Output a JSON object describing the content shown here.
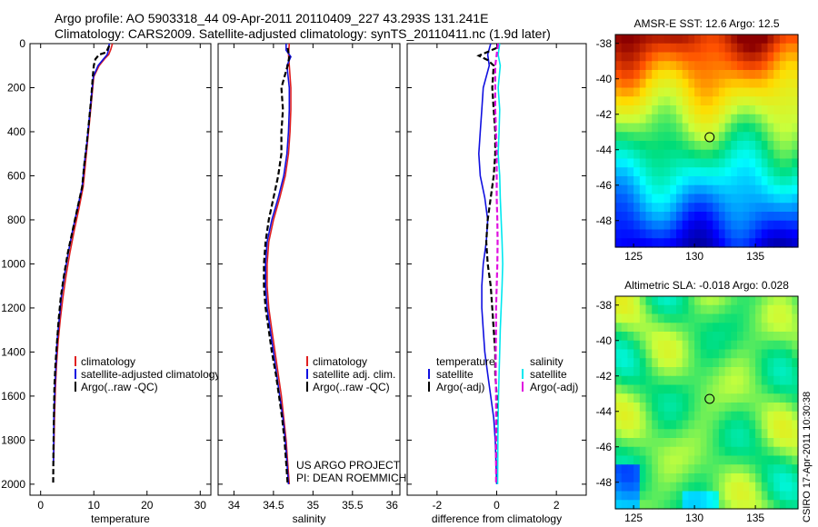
{
  "header": {
    "line1": "Argo profile: AO 5903318_44 09-Apr-2011 20110409_227 43.293S 131.241E",
    "line2": "Climatology: CARS2009. Satellite-adjusted climatology: synTS_20110411.nc (1.9d later)"
  },
  "colors": {
    "climatology": "#e02020",
    "satellite": "#1010e0",
    "argo": "#000000",
    "salinity_sat": "#00e8f0",
    "salinity_argo": "#e010e0"
  },
  "chart_data": [
    {
      "type": "line",
      "id": "temperature",
      "xlabel": "temperature",
      "ylabel": "",
      "xlim": [
        -2,
        32
      ],
      "ylim": [
        2050,
        0
      ],
      "xticks": [
        0,
        10,
        20,
        30
      ],
      "yticks": [
        0,
        200,
        400,
        600,
        800,
        1000,
        1200,
        1400,
        1600,
        1800,
        2000
      ],
      "series": [
        {
          "name": "climatology",
          "color": "#e02020",
          "style": "solid",
          "points": [
            [
              13.5,
              0
            ],
            [
              13.2,
              25
            ],
            [
              12.8,
              50
            ],
            [
              12,
              70
            ],
            [
              11,
              100
            ],
            [
              10,
              150
            ],
            [
              9.6,
              250
            ],
            [
              9.2,
              350
            ],
            [
              8.8,
              450
            ],
            [
              8.4,
              550
            ],
            [
              8,
              650
            ],
            [
              7.2,
              750
            ],
            [
              6.3,
              850
            ],
            [
              5.5,
              950
            ],
            [
              4.8,
              1050
            ],
            [
              4.2,
              1150
            ],
            [
              3.7,
              1250
            ],
            [
              3.3,
              1350
            ],
            [
              3.0,
              1450
            ],
            [
              2.8,
              1550
            ],
            [
              2.6,
              1700
            ],
            [
              2.5,
              1850
            ],
            [
              2.4,
              1900
            ]
          ]
        },
        {
          "name": "satellite-adjusted climatology",
          "color": "#1010e0",
          "style": "solid",
          "points": [
            [
              12.9,
              0
            ],
            [
              12.8,
              25
            ],
            [
              12.5,
              50
            ],
            [
              11.8,
              70
            ],
            [
              10.8,
              100
            ],
            [
              9.9,
              150
            ],
            [
              9.5,
              250
            ],
            [
              9.1,
              350
            ],
            [
              8.7,
              450
            ],
            [
              8.2,
              550
            ],
            [
              7.8,
              650
            ],
            [
              6.9,
              750
            ],
            [
              6,
              850
            ],
            [
              5.2,
              950
            ],
            [
              4.5,
              1050
            ],
            [
              3.9,
              1150
            ],
            [
              3.5,
              1250
            ],
            [
              3.1,
              1350
            ],
            [
              2.9,
              1450
            ],
            [
              2.7,
              1550
            ],
            [
              2.5,
              1700
            ],
            [
              2.45,
              1850
            ],
            [
              2.4,
              1900
            ]
          ]
        },
        {
          "name": "Argo(..raw -QC)",
          "color": "#000000",
          "style": "dashed",
          "points": [
            [
              12.9,
              10
            ],
            [
              12.3,
              40
            ],
            [
              11,
              50
            ],
            [
              10.3,
              70
            ],
            [
              10,
              100
            ],
            [
              9.8,
              150
            ],
            [
              9.5,
              250
            ],
            [
              9.1,
              350
            ],
            [
              8.7,
              450
            ],
            [
              8.2,
              550
            ],
            [
              7.8,
              650
            ],
            [
              6.9,
              750
            ],
            [
              6,
              850
            ],
            [
              5.1,
              950
            ],
            [
              4.4,
              1050
            ],
            [
              3.8,
              1150
            ],
            [
              3.4,
              1250
            ],
            [
              3.1,
              1350
            ],
            [
              2.8,
              1450
            ],
            [
              2.6,
              1550
            ],
            [
              2.5,
              1700
            ],
            [
              2.4,
              1850
            ],
            [
              2.35,
              2000
            ]
          ]
        }
      ],
      "legend": [
        "climatology",
        "satellite-adjusted climatology",
        "Argo(..raw -QC)"
      ]
    },
    {
      "type": "line",
      "id": "salinity",
      "xlabel": "salinity",
      "ylabel": "",
      "xlim": [
        33.8,
        36.1
      ],
      "ylim": [
        2050,
        0
      ],
      "xticks": [
        34,
        34.5,
        35,
        35.5,
        36
      ],
      "series": [
        {
          "name": "climatology",
          "color": "#e02020",
          "style": "solid",
          "points": [
            [
              34.7,
              0
            ],
            [
              34.69,
              50
            ],
            [
              34.7,
              100
            ],
            [
              34.72,
              200
            ],
            [
              34.72,
              300
            ],
            [
              34.71,
              400
            ],
            [
              34.69,
              500
            ],
            [
              34.65,
              600
            ],
            [
              34.58,
              700
            ],
            [
              34.5,
              800
            ],
            [
              34.44,
              900
            ],
            [
              34.42,
              1000
            ],
            [
              34.42,
              1100
            ],
            [
              34.44,
              1200
            ],
            [
              34.48,
              1300
            ],
            [
              34.52,
              1400
            ],
            [
              34.56,
              1500
            ],
            [
              34.6,
              1600
            ],
            [
              34.63,
              1700
            ],
            [
              34.66,
              1800
            ],
            [
              34.68,
              1900
            ],
            [
              34.7,
              2000
            ]
          ]
        },
        {
          "name": "satellite adj. clim.",
          "color": "#1010e0",
          "style": "solid",
          "points": [
            [
              34.66,
              0
            ],
            [
              34.66,
              30
            ],
            [
              34.72,
              60
            ],
            [
              34.67,
              100
            ],
            [
              34.7,
              200
            ],
            [
              34.7,
              300
            ],
            [
              34.69,
              400
            ],
            [
              34.67,
              500
            ],
            [
              34.63,
              600
            ],
            [
              34.56,
              700
            ],
            [
              34.48,
              800
            ],
            [
              34.42,
              900
            ],
            [
              34.4,
              1000
            ],
            [
              34.4,
              1100
            ],
            [
              34.42,
              1200
            ],
            [
              34.46,
              1300
            ],
            [
              34.5,
              1400
            ],
            [
              34.54,
              1500
            ],
            [
              34.58,
              1600
            ],
            [
              34.62,
              1700
            ],
            [
              34.65,
              1800
            ],
            [
              34.67,
              1900
            ],
            [
              34.69,
              2000
            ]
          ]
        },
        {
          "name": "Argo(..raw -QC)",
          "color": "#000000",
          "style": "dashed",
          "points": [
            [
              34.68,
              20
            ],
            [
              34.7,
              60
            ],
            [
              34.68,
              100
            ],
            [
              34.6,
              200
            ],
            [
              34.62,
              300
            ],
            [
              34.6,
              400
            ],
            [
              34.6,
              500
            ],
            [
              34.56,
              600
            ],
            [
              34.5,
              700
            ],
            [
              34.44,
              800
            ],
            [
              34.4,
              900
            ],
            [
              34.38,
              1000
            ],
            [
              34.38,
              1100
            ],
            [
              34.4,
              1200
            ],
            [
              34.44,
              1300
            ],
            [
              34.48,
              1400
            ],
            [
              34.53,
              1500
            ],
            [
              34.57,
              1600
            ],
            [
              34.61,
              1700
            ],
            [
              34.64,
              1800
            ],
            [
              34.66,
              1900
            ],
            [
              34.68,
              2000
            ]
          ]
        }
      ],
      "legend": [
        "climatology",
        "satellite adj. clim.",
        "Argo(..raw -QC)"
      ],
      "annotation": [
        "US ARGO PROJECT",
        "PI: DEAN ROEMMICH"
      ]
    },
    {
      "type": "line",
      "id": "difference",
      "xlabel": "difference from climatology",
      "ylabel": "",
      "xlim": [
        -3,
        3
      ],
      "ylim": [
        2050,
        0
      ],
      "xticks": [
        -2,
        0,
        2
      ],
      "series": [
        {
          "name": "temperature satellite",
          "color": "#1010e0",
          "style": "solid",
          "points": [
            [
              -0.2,
              0
            ],
            [
              -0.3,
              50
            ],
            [
              -0.25,
              100
            ],
            [
              -0.45,
              200
            ],
            [
              -0.5,
              300
            ],
            [
              -0.55,
              400
            ],
            [
              -0.6,
              500
            ],
            [
              -0.55,
              600
            ],
            [
              -0.4,
              700
            ],
            [
              -0.3,
              800
            ],
            [
              -0.35,
              900
            ],
            [
              -0.45,
              1000
            ],
            [
              -0.5,
              1100
            ],
            [
              -0.5,
              1200
            ],
            [
              -0.45,
              1300
            ],
            [
              -0.4,
              1400
            ],
            [
              -0.3,
              1500
            ],
            [
              -0.2,
              1600
            ],
            [
              -0.1,
              1700
            ],
            [
              -0.05,
              1800
            ],
            [
              0,
              2000
            ]
          ]
        },
        {
          "name": "temperature Argo(-adj)",
          "color": "#000000",
          "style": "dashed",
          "points": [
            [
              0,
              20
            ],
            [
              -0.6,
              55
            ],
            [
              -0.3,
              75
            ],
            [
              -0.1,
              100
            ],
            [
              -0.15,
              200
            ],
            [
              -0.1,
              300
            ],
            [
              -0.05,
              400
            ],
            [
              -0.05,
              500
            ],
            [
              -0.1,
              600
            ],
            [
              -0.2,
              700
            ],
            [
              -0.3,
              800
            ],
            [
              -0.35,
              900
            ],
            [
              -0.3,
              1000
            ],
            [
              -0.2,
              1100
            ],
            [
              -0.15,
              1200
            ],
            [
              -0.1,
              1300
            ],
            [
              -0.05,
              1400
            ],
            [
              -0.05,
              1500
            ],
            [
              0,
              1600
            ],
            [
              0,
              1800
            ],
            [
              0,
              2000
            ]
          ]
        },
        {
          "name": "salinity satellite",
          "color": "#00e8f0",
          "style": "solid",
          "points": [
            [
              0.1,
              0
            ],
            [
              0.05,
              50
            ],
            [
              0.12,
              100
            ],
            [
              0.05,
              200
            ],
            [
              0.1,
              300
            ],
            [
              0.08,
              400
            ],
            [
              0.05,
              500
            ],
            [
              0.1,
              600
            ],
            [
              0.12,
              700
            ],
            [
              0.15,
              800
            ],
            [
              0.18,
              900
            ],
            [
              0.2,
              1000
            ],
            [
              0.18,
              1100
            ],
            [
              0.15,
              1200
            ],
            [
              0.12,
              1300
            ],
            [
              0.1,
              1400
            ],
            [
              0.08,
              1500
            ],
            [
              0.06,
              1600
            ],
            [
              0.05,
              1700
            ],
            [
              0.04,
              1800
            ],
            [
              0.03,
              2000
            ]
          ]
        },
        {
          "name": "salinity Argo(-adj)",
          "color": "#e010e0",
          "style": "dashed",
          "points": [
            [
              0.05,
              0
            ],
            [
              0,
              50
            ],
            [
              -0.05,
              100
            ],
            [
              -0.05,
              200
            ],
            [
              -0.05,
              300
            ],
            [
              -0.02,
              400
            ],
            [
              0,
              500
            ],
            [
              0,
              600
            ],
            [
              0,
              700
            ],
            [
              0.02,
              800
            ],
            [
              0.03,
              900
            ],
            [
              0.02,
              1000
            ],
            [
              0,
              1100
            ],
            [
              -0.02,
              1200
            ],
            [
              -0.02,
              1300
            ],
            [
              -0.03,
              1400
            ],
            [
              -0.03,
              1500
            ],
            [
              -0.02,
              1600
            ],
            [
              -0.02,
              1700
            ],
            [
              -0.02,
              1800
            ],
            [
              -0.02,
              2000
            ]
          ]
        }
      ],
      "legend_groups": [
        {
          "title": "temperature",
          "entries": [
            {
              "label": "satellite",
              "color": "#1010e0"
            },
            {
              "label": "Argo(-adj)",
              "color": "#000000"
            }
          ]
        },
        {
          "title": "salinity",
          "entries": [
            {
              "label": "satellite",
              "color": "#00e8f0"
            },
            {
              "label": "Argo(-adj)",
              "color": "#e010e0"
            }
          ]
        }
      ]
    },
    {
      "type": "heatmap",
      "id": "sst",
      "title": "AMSR-E SST: 12.6 Argo: 12.5",
      "xlim": [
        123.5,
        138.5
      ],
      "ylim": [
        -49.5,
        -37.5
      ],
      "xticks": [
        125,
        130,
        135
      ],
      "yticks": [
        -38,
        -40,
        -42,
        -44,
        -46,
        -48
      ],
      "marker": [
        131.241,
        -43.293
      ]
    },
    {
      "type": "heatmap",
      "id": "sla",
      "title": "Altimetric SLA: -0.018 Argo: 0.028",
      "xlim": [
        123.5,
        138.5
      ],
      "ylim": [
        -49.5,
        -37.5
      ],
      "xticks": [
        125,
        130,
        135
      ],
      "yticks": [
        -38,
        -40,
        -42,
        -44,
        -46,
        -48
      ],
      "marker": [
        131.241,
        -43.293
      ]
    }
  ],
  "footer": {
    "stamp": "CSIRO 17-Apr-2011 10:30:38"
  }
}
